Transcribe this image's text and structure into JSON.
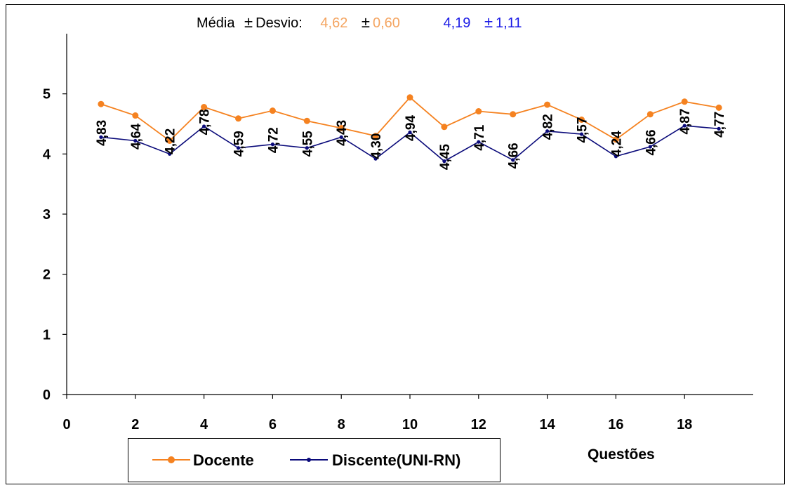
{
  "stats": {
    "prefix": "Média",
    "pm1": "±",
    "desvio_label": "Desvio:",
    "docente_mean": "4,62",
    "pm2": "±",
    "docente_sd": "0,60",
    "discente_mean": "4,19",
    "pm3": "±",
    "discente_sd": "1,11"
  },
  "colors": {
    "docente": "#F58220",
    "docente_stats": "#F4A460",
    "discente": "#0A0A7A",
    "discente_stats": "#1A1AE6"
  },
  "legend": {
    "docente": "Docente",
    "discente": "Discente(UNI-RN)"
  },
  "chart_data": {
    "type": "line",
    "xlabel": "Questões",
    "ylabel": "",
    "xlim": [
      0,
      20
    ],
    "ylim": [
      0,
      6
    ],
    "xticks": [
      0,
      2,
      4,
      6,
      8,
      10,
      12,
      14,
      16,
      18
    ],
    "yticks": [
      0,
      1,
      2,
      3,
      4,
      5
    ],
    "x": [
      1,
      2,
      3,
      4,
      5,
      6,
      7,
      8,
      9,
      10,
      11,
      12,
      13,
      14,
      15,
      16,
      17,
      18,
      19
    ],
    "series": [
      {
        "name": "Docente",
        "values": [
          4.83,
          4.64,
          4.22,
          4.78,
          4.59,
          4.72,
          4.55,
          4.43,
          4.3,
          4.94,
          4.45,
          4.71,
          4.66,
          4.82,
          4.57,
          4.24,
          4.66,
          4.87,
          4.77
        ]
      },
      {
        "name": "Discente(UNI-RN)",
        "values": [
          4.28,
          4.22,
          4.0,
          4.46,
          4.1,
          4.16,
          4.1,
          4.28,
          3.92,
          4.36,
          3.88,
          4.2,
          3.9,
          4.38,
          4.33,
          3.96,
          4.12,
          4.47,
          4.42
        ]
      }
    ],
    "data_labels": [
      "4,83",
      "4,64",
      "4,22",
      "4,78",
      "4,59",
      "4,72",
      "4,55",
      "4,43",
      "4,30",
      "4,94",
      "4,45",
      "4,71",
      "4,66",
      "4,82",
      "4,57",
      "4,24",
      "4,66",
      "4,87",
      "4,77"
    ],
    "grid": false
  }
}
